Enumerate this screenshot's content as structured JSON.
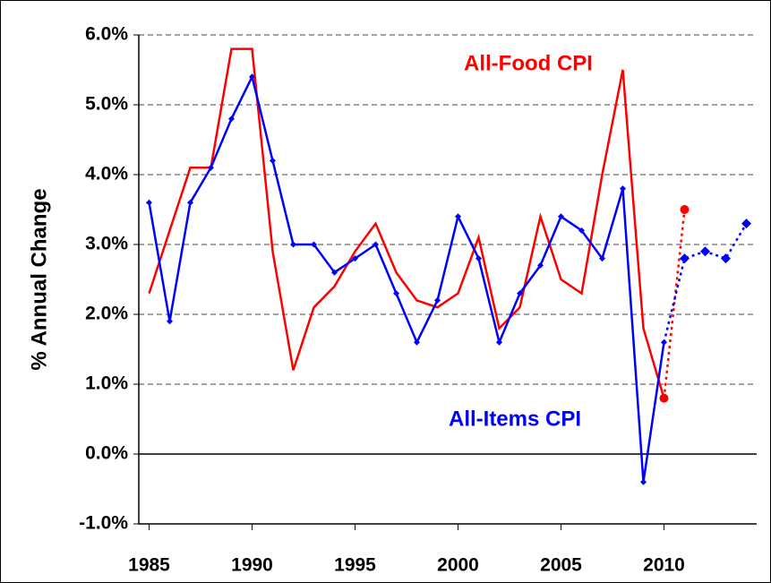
{
  "chart_data": {
    "type": "line",
    "y_axis_label": "% Annual Change",
    "x": [
      1985,
      1986,
      1987,
      1988,
      1989,
      1990,
      1991,
      1992,
      1993,
      1994,
      1995,
      1996,
      1997,
      1998,
      1999,
      2000,
      2001,
      2002,
      2003,
      2004,
      2005,
      2006,
      2007,
      2008,
      2009,
      2010,
      2011,
      2012,
      2013,
      2014
    ],
    "series": [
      {
        "name": "All-Food CPI",
        "color": "#ff0000",
        "marker": "circle",
        "markers_on": "forecast",
        "values": [
          2.3,
          3.2,
          4.1,
          4.1,
          5.8,
          5.8,
          2.9,
          1.2,
          2.1,
          2.4,
          2.9,
          3.3,
          2.6,
          2.2,
          2.1,
          2.3,
          3.1,
          1.8,
          2.1,
          3.4,
          2.5,
          2.3,
          4.0,
          5.5,
          1.8,
          0.8,
          3.5,
          null,
          null,
          null
        ]
      },
      {
        "name": "All-Items CPI",
        "color": "#0000ff",
        "marker": "diamond",
        "markers_on": "all",
        "values": [
          3.6,
          1.9,
          3.6,
          4.1,
          4.8,
          5.4,
          4.2,
          3.0,
          3.0,
          2.6,
          2.8,
          3.0,
          2.3,
          1.6,
          2.2,
          3.4,
          2.8,
          1.6,
          2.3,
          2.7,
          3.4,
          3.2,
          2.8,
          3.8,
          -0.4,
          1.6,
          2.8,
          2.9,
          2.8,
          3.3
        ]
      }
    ],
    "forecast_from": 2010,
    "xlim": [
      1984.5,
      2014.5
    ],
    "xticks": [
      1985,
      1990,
      1995,
      2000,
      2005,
      2010
    ],
    "ylim": [
      -1,
      6
    ],
    "yticks": [
      {
        "value": -1,
        "label": "-1.0%"
      },
      {
        "value": 0,
        "label": "0.0%"
      },
      {
        "value": 1,
        "label": "1.0%"
      },
      {
        "value": 2,
        "label": "2.0%"
      },
      {
        "value": 3,
        "label": "3.0%"
      },
      {
        "value": 4,
        "label": "4.0%"
      },
      {
        "value": 5,
        "label": "5.0%"
      },
      {
        "value": 6,
        "label": "6.0%"
      }
    ],
    "grid": true
  }
}
